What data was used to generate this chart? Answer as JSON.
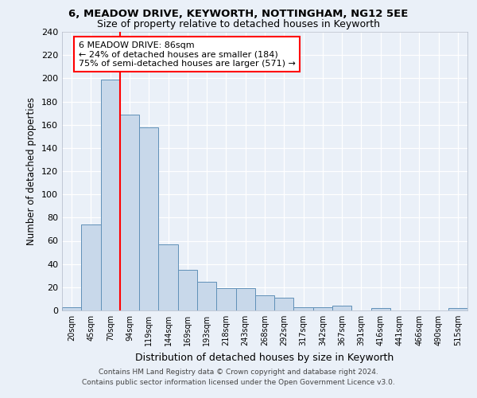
{
  "title": "6, MEADOW DRIVE, KEYWORTH, NOTTINGHAM, NG12 5EE",
  "subtitle": "Size of property relative to detached houses in Keyworth",
  "xlabel": "Distribution of detached houses by size in Keyworth",
  "ylabel": "Number of detached properties",
  "categories": [
    "20sqm",
    "45sqm",
    "70sqm",
    "94sqm",
    "119sqm",
    "144sqm",
    "169sqm",
    "193sqm",
    "218sqm",
    "243sqm",
    "268sqm",
    "292sqm",
    "317sqm",
    "342sqm",
    "367sqm",
    "391sqm",
    "416sqm",
    "441sqm",
    "466sqm",
    "490sqm",
    "515sqm"
  ],
  "values": [
    3,
    74,
    199,
    169,
    158,
    57,
    35,
    25,
    19,
    19,
    13,
    11,
    3,
    3,
    4,
    0,
    2,
    0,
    0,
    0,
    2
  ],
  "bar_color": "#c8d8ea",
  "bar_edge_color": "#6090b8",
  "red_line_x": 2.5,
  "annotation_text": "6 MEADOW DRIVE: 86sqm\n← 24% of detached houses are smaller (184)\n75% of semi-detached houses are larger (571) →",
  "annotation_box_color": "white",
  "annotation_box_edge": "red",
  "ylim": [
    0,
    240
  ],
  "yticks": [
    0,
    20,
    40,
    60,
    80,
    100,
    120,
    140,
    160,
    180,
    200,
    220,
    240
  ],
  "footer_line1": "Contains HM Land Registry data © Crown copyright and database right 2024.",
  "footer_line2": "Contains public sector information licensed under the Open Government Licence v3.0.",
  "bg_color": "#eaf0f8",
  "plot_bg_color": "#eaf0f8",
  "title_fontsize": 9.5,
  "subtitle_fontsize": 9.0,
  "ylabel_fontsize": 8.5,
  "xlabel_fontsize": 9.0,
  "tick_fontsize": 8.0,
  "xtick_fontsize": 7.0,
  "annotation_fontsize": 8.0,
  "footer_fontsize": 6.5
}
